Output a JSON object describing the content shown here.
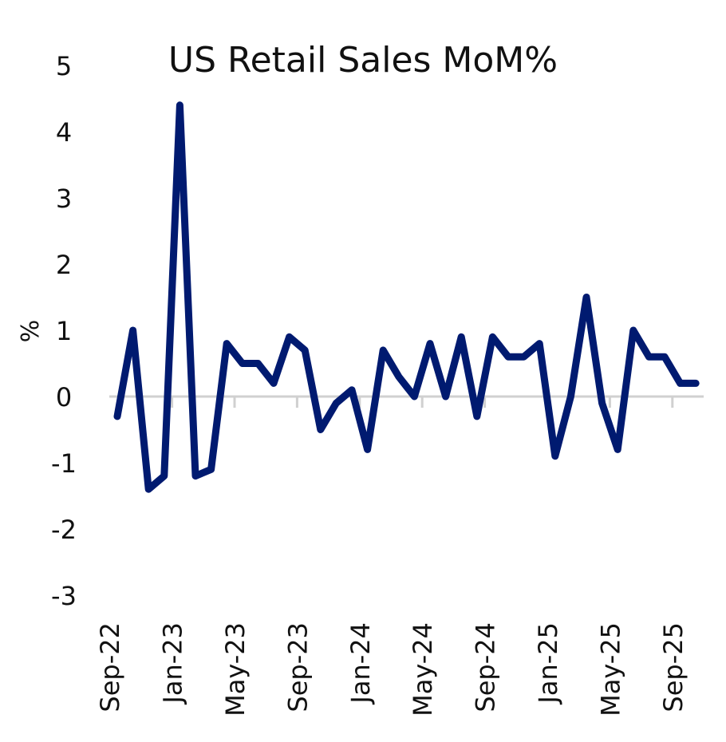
{
  "chart_data": {
    "type": "line",
    "title": "US Retail Sales MoM%",
    "xlabel": "",
    "ylabel": "%",
    "ylim": [
      -3,
      5
    ],
    "yticks": [
      "5",
      "4",
      "3",
      "2",
      "1",
      "0",
      "-1",
      "-2",
      "-3"
    ],
    "xtick_labels": [
      "Sep-22",
      "Jan-23",
      "May-23",
      "Sep-23",
      "Jan-24",
      "May-24",
      "Sep-24",
      "Jan-25",
      "May-25",
      "Sep-25"
    ],
    "categories": [
      "Sep-22",
      "Oct-22",
      "Nov-22",
      "Dec-22",
      "Jan-23",
      "Feb-23",
      "Mar-23",
      "Apr-23",
      "May-23",
      "Jun-23",
      "Jul-23",
      "Aug-23",
      "Sep-23",
      "Oct-23",
      "Nov-23",
      "Dec-23",
      "Jan-24",
      "Feb-24",
      "Mar-24",
      "Apr-24",
      "May-24",
      "Jun-24",
      "Jul-24",
      "Aug-24",
      "Sep-24",
      "Oct-24",
      "Nov-24",
      "Dec-24",
      "Jan-25",
      "Feb-25",
      "Mar-25",
      "Apr-25",
      "May-25",
      "Jun-25",
      "Jul-25",
      "Aug-25",
      "Sep-25",
      "Oct-25"
    ],
    "values": [
      -0.3,
      1.0,
      -1.4,
      -1.2,
      4.4,
      -1.2,
      -1.1,
      0.8,
      0.5,
      0.5,
      0.2,
      0.9,
      0.7,
      -0.5,
      -0.1,
      0.1,
      -0.8,
      0.7,
      0.3,
      0.0,
      0.8,
      0.0,
      0.9,
      -0.3,
      0.9,
      0.6,
      0.6,
      0.8,
      -0.9,
      0.0,
      1.5,
      -0.1,
      -0.8,
      1.0,
      0.6,
      0.6,
      0.2,
      0.2
    ],
    "grid": false,
    "line_color": "#001a70",
    "axis_color": "#d0d0d0"
  }
}
